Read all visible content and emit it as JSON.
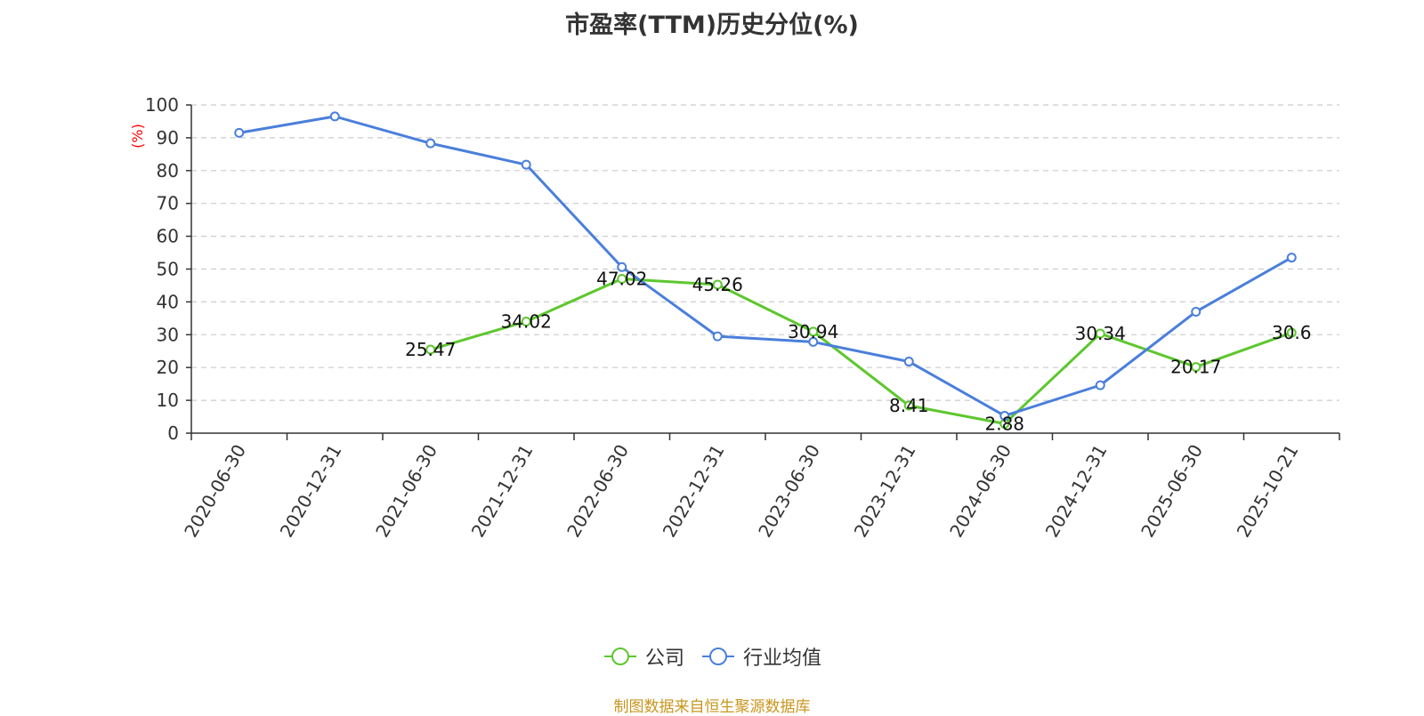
{
  "title": "市盈率(TTM)历史分位(%)",
  "source_text": "制图数据来自恒生聚源数据库",
  "colors": {
    "company": "#5dc72e",
    "industry": "#4a7fdb",
    "source": "#c8961e",
    "y_unit": "#ff0000"
  },
  "chart_data": {
    "type": "line",
    "title": "市盈率(TTM)历史分位(%)",
    "ylabel": "(%)",
    "ylim": [
      0,
      100
    ],
    "yticks": [
      0,
      10,
      20,
      30,
      40,
      50,
      60,
      70,
      80,
      90,
      100
    ],
    "grid": "horizontal-dashed",
    "legend_position": "bottom",
    "categories": [
      "2020-06-30",
      "2020-12-31",
      "2021-06-30",
      "2021-12-31",
      "2022-06-30",
      "2022-12-31",
      "2023-06-30",
      "2023-12-31",
      "2024-06-30",
      "2024-12-31",
      "2025-06-30",
      "2025-10-21"
    ],
    "series": [
      {
        "name": "公司",
        "color": "#5dc72e",
        "show_labels": true,
        "values": [
          null,
          null,
          25.47,
          34.02,
          47.02,
          45.26,
          30.94,
          8.41,
          2.88,
          30.34,
          20.17,
          30.6
        ]
      },
      {
        "name": "行业均值",
        "color": "#4a7fdb",
        "show_labels": false,
        "values": [
          91.5,
          96.5,
          88.3,
          81.8,
          50.6,
          29.5,
          27.8,
          21.8,
          5.3,
          14.6,
          37.0,
          53.5
        ]
      }
    ]
  }
}
